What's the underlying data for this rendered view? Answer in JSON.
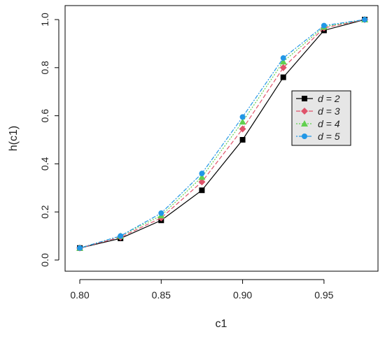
{
  "chart_data": {
    "type": "line",
    "title": "",
    "xlabel": "c1",
    "ylabel": "h(c1)",
    "xlim": [
      0.8,
      0.975
    ],
    "ylim": [
      0.0,
      1.0
    ],
    "x_ticks": [
      "0.80",
      "0.85",
      "0.90",
      "0.95"
    ],
    "y_ticks": [
      "0.0",
      "0.2",
      "0.4",
      "0.6",
      "0.8",
      "1.0"
    ],
    "grid": false,
    "legend_position": "right",
    "x": [
      0.8,
      0.825,
      0.85,
      0.875,
      0.9,
      0.925,
      0.95,
      0.975
    ],
    "series": [
      {
        "name": "d = 2",
        "color": "#000000",
        "marker": "square",
        "line": "solid",
        "values": [
          0.05,
          0.09,
          0.165,
          0.29,
          0.5,
          0.76,
          0.955,
          1.0
        ]
      },
      {
        "name": "d = 3",
        "color": "#df536b",
        "marker": "diamond",
        "line": "dashed",
        "values": [
          0.05,
          0.095,
          0.175,
          0.325,
          0.545,
          0.8,
          0.965,
          1.0
        ]
      },
      {
        "name": "d = 4",
        "color": "#61d04f",
        "marker": "triangle",
        "line": "dotted",
        "values": [
          0.05,
          0.1,
          0.185,
          0.345,
          0.575,
          0.825,
          0.97,
          1.0
        ]
      },
      {
        "name": "d = 5",
        "color": "#2297e6",
        "marker": "dot",
        "line": "dotdash",
        "values": [
          0.05,
          0.1,
          0.195,
          0.36,
          0.595,
          0.84,
          0.975,
          1.0
        ]
      }
    ]
  }
}
